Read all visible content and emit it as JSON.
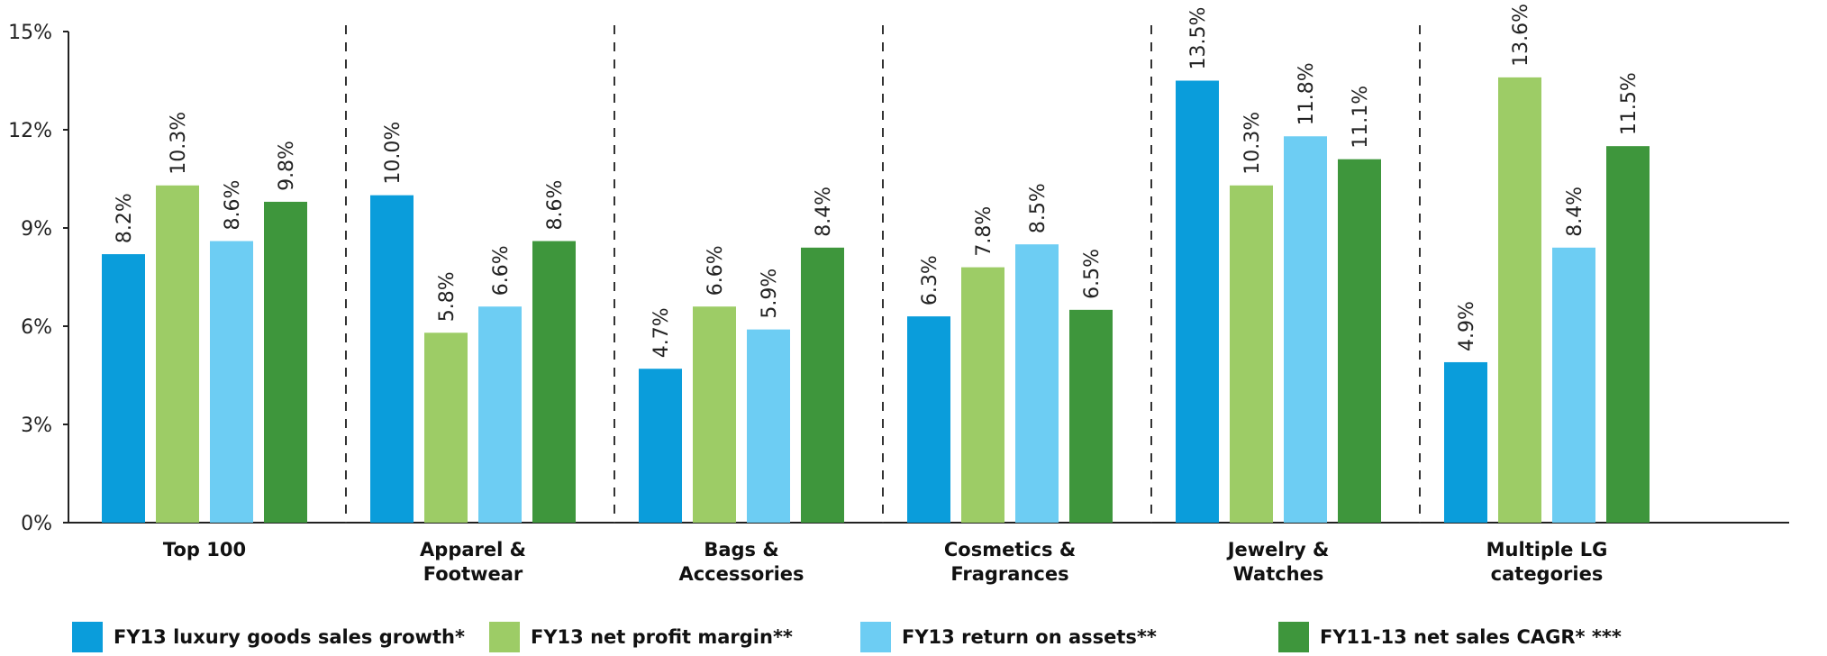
{
  "chart_data": {
    "type": "bar",
    "categories": [
      [
        "Top 100"
      ],
      [
        "Apparel &",
        "Footwear"
      ],
      [
        "Bags &",
        "Accessories"
      ],
      [
        "Cosmetics &",
        "Fragrances"
      ],
      [
        "Jewelry &",
        "Watches"
      ],
      [
        "Multiple LG",
        "categories"
      ]
    ],
    "series": [
      {
        "name": "FY13 luxury goods sales growth*",
        "color": "#0a9ddb",
        "values": [
          8.2,
          10.0,
          4.7,
          6.3,
          13.5,
          4.9
        ],
        "labels": [
          "8.2%",
          "10.0%",
          "4.7%",
          "6.3%",
          "13.5%",
          "4.9%"
        ]
      },
      {
        "name": "FY13 net profit margin**",
        "color": "#9dcc66",
        "values": [
          10.3,
          5.8,
          6.6,
          7.8,
          10.3,
          13.6
        ],
        "labels": [
          "10.3%",
          "5.8%",
          "6.6%",
          "7.8%",
          "10.3%",
          "13.6%"
        ]
      },
      {
        "name": "FY13 return on assets**",
        "color": "#6dcdf3",
        "values": [
          8.6,
          6.6,
          5.9,
          8.5,
          11.8,
          8.4
        ],
        "labels": [
          "8.6%",
          "6.6%",
          "5.9%",
          "8.5%",
          "11.8%",
          "8.4%"
        ]
      },
      {
        "name": "FY11-13 net sales CAGR* ***",
        "color": "#3e963c",
        "values": [
          9.8,
          8.6,
          8.4,
          6.5,
          11.1,
          11.5
        ],
        "labels": [
          "9.8%",
          "8.6%",
          "8.4%",
          "6.5%",
          "11.1%",
          "11.5%"
        ]
      }
    ],
    "ylim": [
      0,
      15
    ],
    "yticks": [
      0,
      3,
      6,
      9,
      12,
      15
    ],
    "ytick_labels": [
      "0%",
      "3%",
      "6%",
      "9%",
      "12%",
      "15%"
    ],
    "grid": false,
    "legend_position": "bottom",
    "category_separators": "dashed"
  }
}
